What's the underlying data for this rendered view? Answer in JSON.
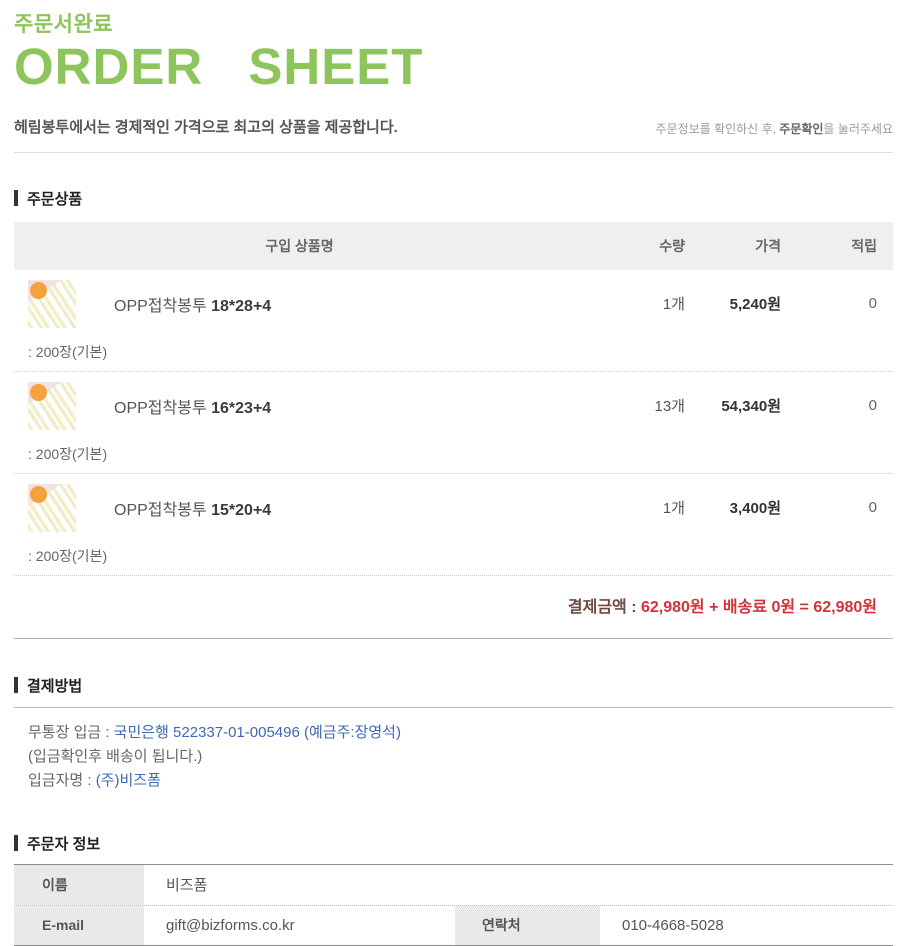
{
  "colors": {
    "accent_green": "#8dc45c",
    "link_blue": "#3e68b2",
    "total_red": "#d2333a",
    "total_label_brown": "#6e4a41"
  },
  "header": {
    "subtitle_kr": "주문서완료",
    "title_en": "ORDER SHEET",
    "tagline": "헤림봉투에서는 경제적인 가격으로 최고의 상품을 제공합니다.",
    "note_prefix": "주문정보를 확인하신 후, ",
    "note_bold": "주문확인",
    "note_suffix": "을 눌러주세요"
  },
  "order_section": {
    "title": "주문상품",
    "columns": {
      "product": "구입 상품명",
      "qty": "수량",
      "price": "가격",
      "points": "적립"
    },
    "items": [
      {
        "name": "OPP접착봉투 ",
        "spec": "18*28+4",
        "option": ": 200장(기본)",
        "qty": "1개",
        "price": "5,240원",
        "points": "0"
      },
      {
        "name": "OPP접착봉투 ",
        "spec": "16*23+4",
        "option": ": 200장(기본)",
        "qty": "13개",
        "price": "54,340원",
        "points": "0"
      },
      {
        "name": "OPP접착봉투 ",
        "spec": "15*20+4",
        "option": ": 200장(기본)",
        "qty": "1개",
        "price": "3,400원",
        "points": "0"
      }
    ],
    "total_label": "결제금액 : ",
    "total_value": "62,980원 + 배송료 0원 = 62,980원"
  },
  "payment_section": {
    "title": "결제방법",
    "deposit_label": "무통장 입금 : ",
    "deposit_value": "국민은행 522337-01-005496 (예금주:장영석)",
    "deposit_note": "(입금확인후 배송이 됩니다.)",
    "depositor_label": "입금자명 : ",
    "depositor_value": "(주)비즈폼"
  },
  "customer_section": {
    "title": "주문자 정보",
    "name_label": "이름",
    "name_value": "비즈폼",
    "email_label": "E-mail",
    "email_value": "gift@bizforms.co.kr",
    "phone_label": "연락처",
    "phone_value": "010-4668-5028"
  }
}
